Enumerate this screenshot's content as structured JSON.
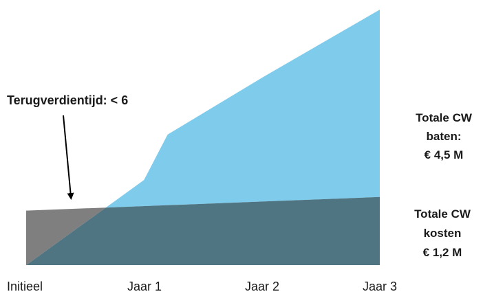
{
  "chart_data": {
    "type": "area",
    "categories": [
      "Initieel",
      "Jaar 1",
      "Jaar 2",
      "Jaar 3"
    ],
    "series": [
      {
        "name": "Totale CW baten",
        "x": [
          0,
          1,
          1.2,
          2,
          3
        ],
        "values": [
          0,
          1.5,
          2.3,
          3.3,
          4.5
        ],
        "color": "#7ecbeb"
      },
      {
        "name": "Totale CW kosten",
        "x": [
          0,
          3
        ],
        "values": [
          0.96,
          1.2
        ],
        "color": "#7f7f7f"
      }
    ],
    "overlap_color": "#4f7482",
    "annotation": "Terugverdientijd: < 6",
    "labels": {
      "baten": [
        "Totale CW",
        "baten:",
        "€ 4,5 M"
      ],
      "kosten": [
        "Totale CW",
        "kosten",
        "€ 1,2 M"
      ]
    },
    "xlim": [
      0,
      3
    ],
    "ylim": [
      0,
      4.5
    ],
    "grid": false,
    "legend": "none"
  }
}
